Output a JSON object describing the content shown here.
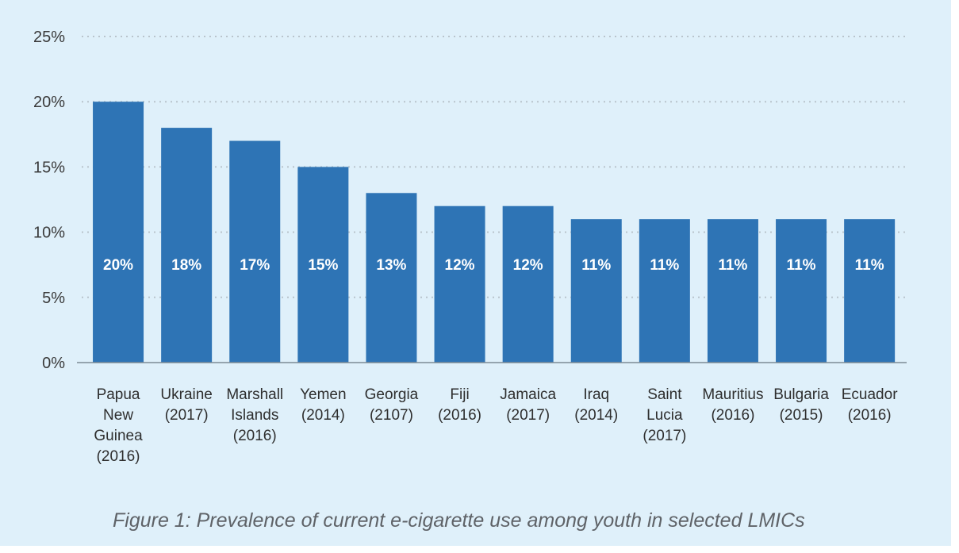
{
  "chart_data": {
    "type": "bar",
    "categories": [
      [
        "Papua",
        "New",
        "Guinea",
        "(2016)"
      ],
      [
        "Ukraine",
        "(2017)"
      ],
      [
        "Marshall",
        "Islands",
        "(2016)"
      ],
      [
        "Yemen",
        "(2014)"
      ],
      [
        "Georgia",
        "(2107)"
      ],
      [
        "Fiji",
        "(2016)"
      ],
      [
        "Jamaica",
        "(2017)"
      ],
      [
        "Iraq",
        "(2014)"
      ],
      [
        "Saint",
        "Lucia",
        "(2017)"
      ],
      [
        "Mauritius",
        "(2016)"
      ],
      [
        "Bulgaria",
        "(2015)"
      ],
      [
        "Ecuador",
        "(2016)"
      ]
    ],
    "values": [
      20,
      18,
      17,
      15,
      13,
      12,
      12,
      11,
      11,
      11,
      11,
      11
    ],
    "data_labels": [
      "20%",
      "18%",
      "17%",
      "15%",
      "13%",
      "12%",
      "12%",
      "11%",
      "11%",
      "11%",
      "11%",
      "11%"
    ],
    "y_ticks": [
      0,
      5,
      10,
      15,
      20,
      25
    ],
    "y_tick_labels": [
      "0%",
      "5%",
      "10%",
      "15%",
      "20%",
      "25%"
    ],
    "ylim": [
      0,
      25
    ],
    "grid": "dotted-horizontal",
    "legend": "none",
    "bar_color": "#2e74b5",
    "background_color": "#dff0fa"
  },
  "caption": "Figure 1: Prevalence of current e-cigarette use among youth in selected LMICs"
}
